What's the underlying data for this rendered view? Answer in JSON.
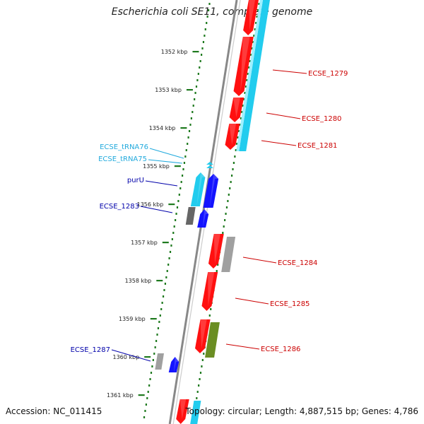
{
  "title": "Escherichia coli SE11, complete genome",
  "footer": {
    "accession": "Accession: NC_011415",
    "topology": "Topology: circular; Length: 4,887,515 bp; Genes: 4,786"
  },
  "colors": {
    "background": "#ffffff",
    "backbone": "#888888",
    "tick": "#1f7a1f",
    "forward_cds": "#1414ff",
    "reverse_cds": "#ff1010",
    "rna": "#22ccee",
    "pseudo_or_other": "#a0a0a0",
    "olive_gene": "#6b8e23",
    "label_red": "#cc0000",
    "label_blue": "#0000aa",
    "label_cyan": "#22aadd"
  },
  "kbp_ticks": [
    "1352 kbp",
    "1353 kbp",
    "1354 kbp",
    "1355 kbp",
    "1356 kbp",
    "1357 kbp",
    "1358 kbp",
    "1359 kbp",
    "1360 kbp",
    "1361 kbp"
  ],
  "gene_labels": [
    {
      "text": "ECSE_1279",
      "color": "label_red"
    },
    {
      "text": "ECSE_1280",
      "color": "label_red"
    },
    {
      "text": "ECSE_1281",
      "color": "label_red"
    },
    {
      "text": "ECSE_tRNA76",
      "color": "label_cyan"
    },
    {
      "text": "ECSE_tRNA75",
      "color": "label_cyan"
    },
    {
      "text": "purU",
      "color": "label_blue"
    },
    {
      "text": "ECSE_1283",
      "color": "label_blue"
    },
    {
      "text": "ECSE_1284",
      "color": "label_red"
    },
    {
      "text": "ECSE_1285",
      "color": "label_red"
    },
    {
      "text": "ECSE_1286",
      "color": "label_red"
    },
    {
      "text": "ECSE_1287",
      "color": "label_blue"
    }
  ]
}
